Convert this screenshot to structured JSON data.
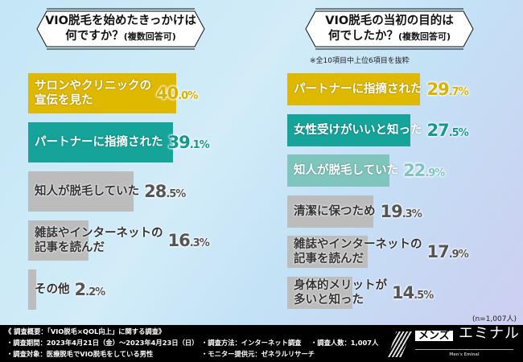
{
  "colors": {
    "gold": "#dfb800",
    "teal": "#15a39a",
    "light_teal": "#7fc5bd",
    "gray": "#bcbcbc",
    "gray_text": "#555555"
  },
  "chart_data": [
    {
      "type": "bar",
      "orientation": "horizontal",
      "title_line1": "VIO脱毛を始めたきっかけは",
      "title_line2": "何ですか？",
      "title_suffix": "(複数回答可)",
      "unit": "%",
      "categories": [
        "サロンやクリニックの\n宣伝を見た",
        "パートナーに指摘された",
        "知人が脱毛していた",
        "雑誌やインターネットの\n記事を読んだ",
        "その他"
      ],
      "values": [
        40.0,
        39.1,
        28.5,
        16.3,
        2.2
      ],
      "bar_colors": [
        "gold",
        "teal",
        "gray",
        "gray",
        "gray"
      ]
    },
    {
      "type": "bar",
      "orientation": "horizontal",
      "title_line1": "VIO脱毛の当初の目的は",
      "title_line2": "何でしたか？",
      "title_suffix": "(複数回答可)",
      "note": "※全10項目中上位6項目を抜粋",
      "unit": "%",
      "categories": [
        "パートナーに指摘された",
        "女性受けがいいと知った",
        "知人が脱毛していた",
        "清潔に保つため",
        "雑誌やインターネットの\n記事を読んだ",
        "身体的メリットが\n多いと知った"
      ],
      "values": [
        29.7,
        27.5,
        22.9,
        19.3,
        17.9,
        14.5
      ],
      "bar_colors": [
        "gold",
        "teal",
        "light_teal",
        "gray",
        "gray",
        "gray"
      ],
      "sample_size": "(n=1,007人)"
    }
  ],
  "footer": {
    "heading": "《 調査概要：「VIO脱毛×QOL向上」に関する調査》",
    "period": "・調査期間：2023年4月21日（金）～2023年4月23日（日）",
    "target": "・調査対象：医療脱毛でVIO脱毛をしている男性",
    "method": "・調査方法：インターネット調査",
    "provider": "・モニター提供元：ゼネラルリサーチ",
    "count": "・調査人数：1,007人"
  },
  "logo": {
    "box": "メンズ",
    "name": "エミナル",
    "sub": "Men's Eminal"
  }
}
